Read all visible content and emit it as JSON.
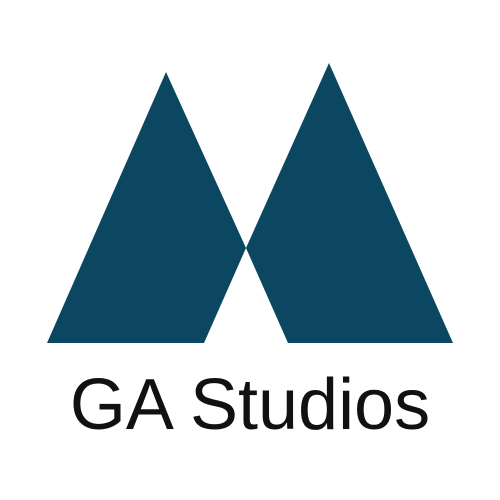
{
  "brand": {
    "name": "GA Studios",
    "mark_icon": "twin-peaks-logo-icon",
    "colors": {
      "mark": "#0b4761",
      "text": "#111111",
      "background": "#ffffff"
    }
  }
}
